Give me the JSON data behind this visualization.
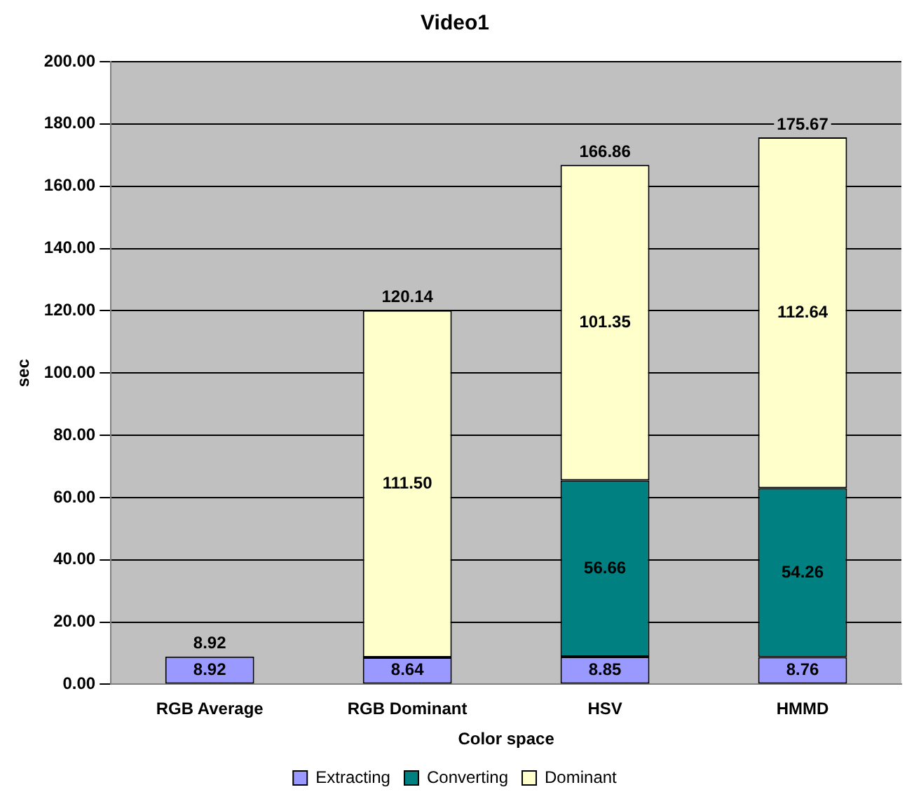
{
  "chart_data": {
    "type": "bar",
    "title": "Video1",
    "xlabel": "Color space",
    "ylabel": "sec",
    "stacked": true,
    "grid": "y",
    "legend": "bottom",
    "categories": [
      "RGB Average",
      "RGB Dominant",
      "HSV",
      "HMMD"
    ],
    "series": [
      {
        "name": "Extracting",
        "color": "#9999ff",
        "values": [
          8.92,
          8.64,
          8.85,
          8.76
        ],
        "value_labels": [
          "8.92",
          "8.64",
          "8.85",
          "8.76"
        ]
      },
      {
        "name": "Converting",
        "color": "#008080",
        "values": [
          null,
          null,
          56.66,
          54.26
        ],
        "value_labels": [
          null,
          null,
          "56.66",
          "54.26"
        ]
      },
      {
        "name": "Dominant",
        "color": "#ffffcc",
        "values": [
          null,
          111.5,
          101.35,
          112.64
        ],
        "value_labels": [
          null,
          "111.50",
          "101.35",
          "112.64"
        ]
      }
    ],
    "totals": [
      "8.92",
      "120.14",
      "166.86",
      "175.67"
    ],
    "ylim": [
      0,
      200
    ],
    "yticks": [
      {
        "value": 0,
        "label": "0.00"
      },
      {
        "value": 20,
        "label": "20.00"
      },
      {
        "value": 40,
        "label": "40.00"
      },
      {
        "value": 60,
        "label": "60.00"
      },
      {
        "value": 80,
        "label": "80.00"
      },
      {
        "value": 100,
        "label": "100.00"
      },
      {
        "value": 120,
        "label": "120.00"
      },
      {
        "value": 140,
        "label": "140.00"
      },
      {
        "value": 160,
        "label": "160.00"
      },
      {
        "value": 180,
        "label": "180.00"
      },
      {
        "value": 200,
        "label": "200.00"
      }
    ]
  }
}
